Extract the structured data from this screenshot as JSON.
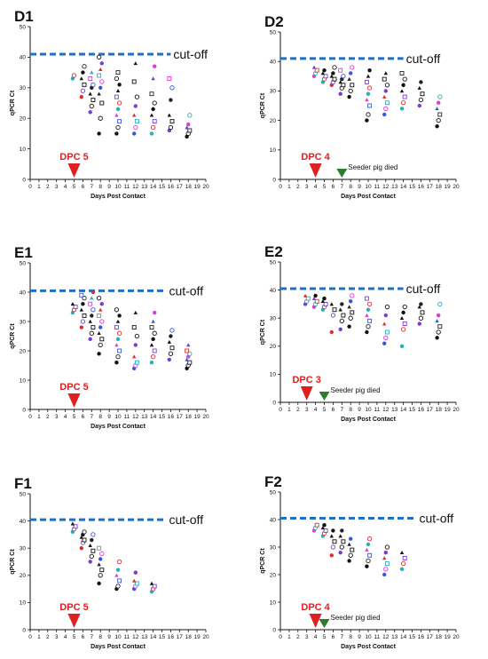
{
  "figure": {
    "cutoff_label": "cut-off",
    "xlabel": "Days Post Contact",
    "ylabel": "qPCR Ct",
    "colors": {
      "cutoff": "#1f6fc4",
      "dpc_marker": "#e02020",
      "seeder_marker": "#2f7a2f",
      "axis": "#111111"
    }
  },
  "chart_data": [
    {
      "type": "scatter",
      "panel": "D1",
      "xlim": [
        0,
        20
      ],
      "ylim": [
        0,
        50
      ],
      "xticks": [
        "0",
        "1",
        "2",
        "3",
        "4",
        "5",
        "6",
        "7",
        "8",
        "9",
        "10",
        "11",
        "12",
        "13",
        "14",
        "15",
        "16",
        "17",
        "18",
        "19",
        "20"
      ],
      "yticks": [
        "0",
        "10",
        "20",
        "30",
        "40",
        "50"
      ],
      "cutoff": 41,
      "cutoff_xmax": 16,
      "dpc": {
        "x": 5,
        "label": "DPC 5"
      },
      "seeder": null,
      "series": [
        {
          "x": 5,
          "values": [
            33,
            34
          ]
        },
        {
          "x": 6,
          "values": [
            27,
            29,
            31,
            33,
            35,
            37
          ]
        },
        {
          "x": 7,
          "values": [
            22,
            24,
            26,
            28,
            30,
            31,
            33,
            35
          ]
        },
        {
          "x": 8,
          "values": [
            15,
            20,
            25,
            28,
            30,
            32,
            34,
            36,
            38,
            40
          ]
        },
        {
          "x": 10,
          "values": [
            15,
            17,
            19,
            21,
            23,
            25,
            27,
            29,
            31,
            33,
            35
          ]
        },
        {
          "x": 12,
          "values": [
            15,
            17,
            19,
            21,
            24,
            27,
            32,
            38
          ]
        },
        {
          "x": 14,
          "values": [
            15,
            17,
            19,
            21,
            23,
            25,
            28,
            33,
            37
          ]
        },
        {
          "x": 16,
          "values": [
            16,
            17,
            19,
            21,
            26,
            30,
            33
          ]
        },
        {
          "x": 18,
          "values": [
            14,
            15,
            16,
            17,
            18,
            21
          ]
        }
      ]
    },
    {
      "type": "scatter",
      "panel": "D2",
      "xlim": [
        0,
        20
      ],
      "ylim": [
        0,
        50
      ],
      "xticks": [
        "0",
        "1",
        "2",
        "3",
        "4",
        "5",
        "6",
        "7",
        "8",
        "9",
        "10",
        "11",
        "12",
        "13",
        "14",
        "15",
        "16",
        "17",
        "18",
        "19",
        "20"
      ],
      "yticks": [
        "0",
        "10",
        "20",
        "30",
        "40",
        "50"
      ],
      "cutoff": 41,
      "cutoff_xmax": 14,
      "dpc": {
        "x": 4,
        "label": "DPC 4"
      },
      "seeder": {
        "x": 7,
        "label": "Seeder pig died"
      },
      "series": [
        {
          "x": 4,
          "values": [
            35,
            36,
            37,
            38
          ]
        },
        {
          "x": 5,
          "values": [
            33,
            34,
            35,
            36,
            37
          ]
        },
        {
          "x": 6,
          "values": [
            32,
            33,
            34,
            35,
            36,
            38
          ]
        },
        {
          "x": 7,
          "values": [
            29,
            31,
            32,
            33,
            34,
            35,
            37
          ]
        },
        {
          "x": 8,
          "values": [
            28,
            30,
            32,
            34,
            36,
            38
          ]
        },
        {
          "x": 10,
          "values": [
            20,
            22,
            25,
            27,
            29,
            31,
            33,
            35,
            37
          ]
        },
        {
          "x": 12,
          "values": [
            22,
            24,
            26,
            28,
            30,
            32,
            34,
            36
          ]
        },
        {
          "x": 14,
          "values": [
            24,
            26,
            28,
            30,
            32,
            34,
            36
          ]
        },
        {
          "x": 16,
          "values": [
            25,
            27,
            29,
            31,
            33
          ]
        },
        {
          "x": 18,
          "values": [
            18,
            20,
            22,
            24,
            26,
            28
          ]
        }
      ]
    },
    {
      "type": "scatter",
      "panel": "E1",
      "xlim": [
        0,
        20
      ],
      "ylim": [
        0,
        50
      ],
      "xticks": [
        "0",
        "1",
        "2",
        "3",
        "4",
        "5",
        "6",
        "7",
        "8",
        "9",
        "10",
        "11",
        "12",
        "13",
        "14",
        "15",
        "16",
        "17",
        "18",
        "19",
        "20"
      ],
      "yticks": [
        "0",
        "10",
        "20",
        "30",
        "40",
        "50"
      ],
      "cutoff": 40.5,
      "cutoff_xmax": 15.5,
      "dpc": {
        "x": 5,
        "label": "DPC 5"
      },
      "seeder": null,
      "series": [
        {
          "x": 5,
          "values": [
            33,
            34,
            35,
            36
          ]
        },
        {
          "x": 6,
          "values": [
            28,
            30,
            32,
            34,
            36,
            38,
            39
          ]
        },
        {
          "x": 7,
          "values": [
            24,
            26,
            28,
            30,
            32,
            34,
            36,
            38,
            40
          ]
        },
        {
          "x": 8,
          "values": [
            19,
            22,
            24,
            26,
            28,
            30,
            32,
            34,
            36,
            38
          ]
        },
        {
          "x": 10,
          "values": [
            16,
            18,
            20,
            22,
            24,
            26,
            28,
            30,
            32,
            34
          ]
        },
        {
          "x": 12,
          "values": [
            14,
            15,
            16,
            18,
            22,
            25,
            28,
            33
          ]
        },
        {
          "x": 14,
          "values": [
            16,
            18,
            20,
            22,
            24,
            26,
            28,
            30,
            33
          ]
        },
        {
          "x": 16,
          "values": [
            17,
            19,
            21,
            23,
            25,
            27
          ]
        },
        {
          "x": 18,
          "values": [
            14,
            15,
            16,
            17,
            18,
            19,
            20,
            22
          ]
        }
      ]
    },
    {
      "type": "scatter",
      "panel": "E2",
      "xlim": [
        0,
        20
      ],
      "ylim": [
        0,
        50
      ],
      "xticks": [
        "0",
        "1",
        "2",
        "3",
        "4",
        "5",
        "6",
        "7",
        "8",
        "9",
        "10",
        "11",
        "12",
        "13",
        "14",
        "15",
        "16",
        "17",
        "18",
        "19",
        "20"
      ],
      "yticks": [
        "0",
        "10",
        "20",
        "30",
        "40",
        "50"
      ],
      "cutoff": 40.5,
      "cutoff_xmax": 14,
      "dpc": {
        "x": 3,
        "label": "DPC 3"
      },
      "seeder": {
        "x": 5,
        "label": "Seeder pig died"
      },
      "series": [
        {
          "x": 3,
          "values": [
            35,
            36,
            37,
            38
          ]
        },
        {
          "x": 4,
          "values": [
            34,
            35,
            36,
            37,
            38
          ]
        },
        {
          "x": 5,
          "values": [
            33,
            34,
            35,
            36,
            37
          ]
        },
        {
          "x": 6,
          "values": [
            25,
            31,
            33,
            35
          ]
        },
        {
          "x": 7,
          "values": [
            26,
            29,
            31,
            33,
            35
          ]
        },
        {
          "x": 8,
          "values": [
            27,
            30,
            32,
            34,
            36,
            38
          ]
        },
        {
          "x": 10,
          "values": [
            25,
            27,
            29,
            31,
            33,
            35,
            37
          ]
        },
        {
          "x": 12,
          "values": [
            21,
            23,
            25,
            28,
            31,
            34
          ]
        },
        {
          "x": 14,
          "values": [
            20,
            26,
            28,
            30,
            32,
            34
          ]
        },
        {
          "x": 16,
          "values": [
            28,
            30,
            32,
            34,
            35
          ]
        },
        {
          "x": 18,
          "values": [
            23,
            25,
            27,
            29,
            31,
            35
          ]
        }
      ]
    },
    {
      "type": "scatter",
      "panel": "F1",
      "xlim": [
        0,
        20
      ],
      "ylim": [
        0,
        50
      ],
      "xticks": [
        "0",
        "1",
        "2",
        "3",
        "4",
        "5",
        "6",
        "7",
        "8",
        "9",
        "10",
        "11",
        "12",
        "13",
        "14",
        "15",
        "16",
        "17",
        "18",
        "19",
        "20"
      ],
      "yticks": [
        "0",
        "10",
        "20",
        "30",
        "40",
        "50"
      ],
      "cutoff": 40.5,
      "cutoff_xmax": 15.5,
      "dpc": {
        "x": 5,
        "label": "DPC 5"
      },
      "seeder": null,
      "series": [
        {
          "x": 5,
          "values": [
            36,
            37,
            38,
            39
          ]
        },
        {
          "x": 6,
          "values": [
            30,
            32,
            33,
            34,
            35,
            36
          ]
        },
        {
          "x": 7,
          "values": [
            25,
            27,
            29,
            31,
            33,
            35
          ]
        },
        {
          "x": 8,
          "values": [
            17,
            20,
            22,
            24,
            26,
            28,
            30
          ]
        },
        {
          "x": 10,
          "values": [
            15,
            16,
            18,
            20,
            22,
            25
          ]
        },
        {
          "x": 12,
          "values": [
            15,
            16,
            17,
            18,
            21
          ]
        },
        {
          "x": 14,
          "values": [
            14,
            15,
            16,
            17
          ]
        }
      ]
    },
    {
      "type": "scatter",
      "panel": "F2",
      "xlim": [
        0,
        20
      ],
      "ylim": [
        0,
        50
      ],
      "xticks": [
        "0",
        "1",
        "2",
        "3",
        "4",
        "5",
        "6",
        "7",
        "8",
        "9",
        "10",
        "11",
        "12",
        "13",
        "14",
        "15",
        "16",
        "17",
        "18",
        "19",
        "20"
      ],
      "yticks": [
        "0",
        "10",
        "20",
        "30",
        "40",
        "50"
      ],
      "cutoff": 40.5,
      "cutoff_xmax": 15.5,
      "dpc": {
        "x": 4,
        "label": "DPC 4"
      },
      "seeder": {
        "x": 5,
        "label": "Seeder pig died"
      },
      "series": [
        {
          "x": 4,
          "values": [
            36,
            37,
            38
          ]
        },
        {
          "x": 5,
          "values": [
            34,
            35,
            36,
            37,
            38
          ]
        },
        {
          "x": 6,
          "values": [
            27,
            30,
            32,
            34,
            36
          ]
        },
        {
          "x": 7,
          "values": [
            28,
            30,
            32,
            34,
            36
          ]
        },
        {
          "x": 8,
          "values": [
            25,
            27,
            29,
            31,
            33
          ]
        },
        {
          "x": 10,
          "values": [
            23,
            25,
            27,
            29,
            31,
            33
          ]
        },
        {
          "x": 12,
          "values": [
            20,
            22,
            24,
            26,
            28,
            30
          ]
        },
        {
          "x": 14,
          "values": [
            22,
            24,
            26,
            28
          ]
        }
      ]
    }
  ]
}
